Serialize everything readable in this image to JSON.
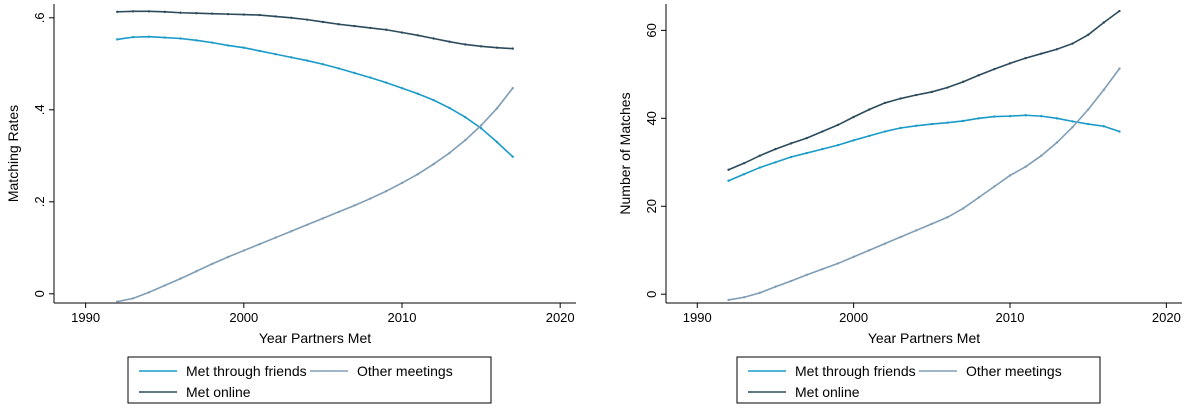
{
  "colors": {
    "friends": "#1a9ac9",
    "online": "#2b4b5c",
    "other": "#7f9db5"
  },
  "chart_data": [
    {
      "type": "line",
      "xlabel": "Year Partners Met",
      "ylabel": "Matching Rates",
      "xlim": [
        1988,
        2021
      ],
      "ylim": [
        -0.02,
        0.63
      ],
      "xticks": [
        1990,
        2000,
        2010,
        2020
      ],
      "xtick_labels": [
        "1990",
        "2000",
        "2010",
        "2020"
      ],
      "yticks": [
        0,
        0.2,
        0.4,
        0.6
      ],
      "ytick_labels": [
        "0",
        ".2",
        ".4",
        ".6"
      ],
      "ytick_orientation": "vertical",
      "legend": [
        "Met through friends",
        "Other meetings",
        "Met online"
      ],
      "legend_position": "bottom",
      "x": [
        1992,
        1993,
        1994,
        1995,
        1996,
        1997,
        1998,
        1999,
        2000,
        2001,
        2002,
        2003,
        2004,
        2005,
        2006,
        2007,
        2008,
        2009,
        2010,
        2011,
        2012,
        2013,
        2014,
        2015,
        2016,
        2017
      ],
      "series": [
        {
          "name": "Met through friends",
          "color_key": "friends",
          "values": [
            0.553,
            0.558,
            0.559,
            0.557,
            0.555,
            0.551,
            0.546,
            0.54,
            0.535,
            0.528,
            0.521,
            0.514,
            0.507,
            0.499,
            0.49,
            0.48,
            0.47,
            0.459,
            0.447,
            0.435,
            0.421,
            0.404,
            0.384,
            0.36,
            0.33,
            0.298
          ]
        },
        {
          "name": "Met online",
          "color_key": "online",
          "values": [
            0.613,
            0.614,
            0.614,
            0.613,
            0.611,
            0.61,
            0.609,
            0.608,
            0.607,
            0.606,
            0.603,
            0.6,
            0.596,
            0.591,
            0.586,
            0.582,
            0.578,
            0.574,
            0.568,
            0.562,
            0.555,
            0.548,
            0.542,
            0.538,
            0.535,
            0.533
          ]
        },
        {
          "name": "Other meetings",
          "color_key": "other",
          "values": [
            -0.017,
            -0.01,
            0.003,
            0.018,
            0.033,
            0.049,
            0.065,
            0.08,
            0.094,
            0.108,
            0.122,
            0.136,
            0.15,
            0.164,
            0.178,
            0.192,
            0.207,
            0.223,
            0.241,
            0.26,
            0.282,
            0.306,
            0.334,
            0.366,
            0.403,
            0.447
          ]
        }
      ]
    },
    {
      "type": "line",
      "xlabel": "Year Partners Met",
      "ylabel": "Number of Matches",
      "xlim": [
        1988,
        2021
      ],
      "ylim": [
        -2,
        66
      ],
      "xticks": [
        1990,
        2000,
        2010,
        2020
      ],
      "xtick_labels": [
        "1990",
        "2000",
        "2010",
        "2020"
      ],
      "yticks": [
        0,
        20,
        40,
        60
      ],
      "ytick_labels": [
        "0",
        "20",
        "40",
        "60"
      ],
      "ytick_orientation": "vertical",
      "legend": [
        "Met through friends",
        "Other meetings",
        "Met online"
      ],
      "legend_position": "bottom",
      "x": [
        1992,
        1993,
        1994,
        1995,
        1996,
        1997,
        1998,
        1999,
        2000,
        2001,
        2002,
        2003,
        2004,
        2005,
        2006,
        2007,
        2008,
        2009,
        2010,
        2011,
        2012,
        2013,
        2014,
        2015,
        2016,
        2017
      ],
      "series": [
        {
          "name": "Met through friends",
          "color_key": "friends",
          "values": [
            25.8,
            27.3,
            28.8,
            30.0,
            31.2,
            32.1,
            33.0,
            33.9,
            35.0,
            36.0,
            37.0,
            37.8,
            38.3,
            38.7,
            39.0,
            39.4,
            40.0,
            40.4,
            40.5,
            40.7,
            40.5,
            40.0,
            39.3,
            38.7,
            38.2,
            37.0
          ]
        },
        {
          "name": "Met online",
          "color_key": "online",
          "values": [
            28.3,
            29.8,
            31.5,
            33.0,
            34.3,
            35.5,
            37.0,
            38.5,
            40.3,
            42.0,
            43.5,
            44.5,
            45.3,
            46.0,
            47.0,
            48.3,
            49.8,
            51.2,
            52.5,
            53.7,
            54.7,
            55.7,
            57.0,
            59.0,
            61.8,
            64.4
          ]
        },
        {
          "name": "Other meetings",
          "color_key": "other",
          "values": [
            -1.3,
            -0.7,
            0.3,
            1.7,
            3.0,
            4.4,
            5.7,
            7.0,
            8.5,
            10.0,
            11.5,
            13.0,
            14.5,
            16.0,
            17.5,
            19.5,
            22.0,
            24.5,
            27.0,
            29.0,
            31.5,
            34.5,
            38.0,
            42.0,
            46.5,
            51.3
          ]
        }
      ]
    }
  ]
}
